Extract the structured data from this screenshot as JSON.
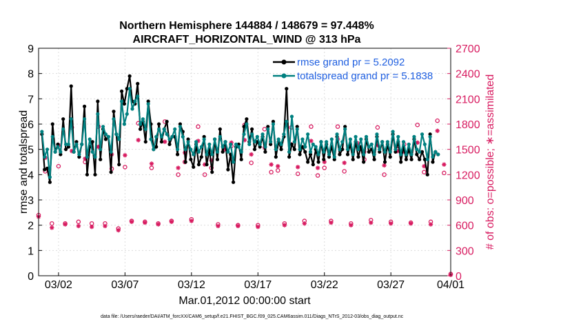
{
  "chart_data": {
    "type": "line",
    "title_line1": "Northern Hemisphere 144884 / 148679 = 97.448%",
    "title_line2": "AIRCRAFT_HORIZONTAL_WIND @ 313 hPa",
    "xlabel": "Mar.01,2012 00:00:00 start",
    "ylabel_left": "rmse and totalspread",
    "ylabel_right": "# of obs: o=possible; ∗=assimilated",
    "footer": "data file: /Users/raeder/DAI/ATM_forcXX/CAM6_setup/f.e21.FHIST_BGC.f09_025.CAM6assim.011/Diags_NTrS_2012-03/obs_diag_output.nc",
    "xlim": [
      0.5,
      31.5
    ],
    "ylim_left": [
      0,
      9
    ],
    "ylim_right": [
      0,
      2700
    ],
    "x_ticks": [
      {
        "value": 2,
        "label": "03/02"
      },
      {
        "value": 7,
        "label": "03/07"
      },
      {
        "value": 12,
        "label": "03/12"
      },
      {
        "value": 17,
        "label": "03/17"
      },
      {
        "value": 22,
        "label": "03/22"
      },
      {
        "value": 27,
        "label": "03/27"
      },
      {
        "value": 32,
        "label": "04/01"
      }
    ],
    "y_ticks_left": [
      "0",
      "1",
      "2",
      "3",
      "4",
      "5",
      "6",
      "7",
      "8",
      "9"
    ],
    "y_ticks_right": [
      "0",
      "300",
      "600",
      "900",
      "1200",
      "1500",
      "1800",
      "2100",
      "2400",
      "2700"
    ],
    "colors": {
      "rmse": "#000000",
      "spread": "#008080",
      "obs": "#d81b60",
      "legend_text": "#1f5fe0"
    },
    "series": [
      {
        "name": "rmse",
        "legend": "rmse grand pr = 5.2092",
        "values": [
          5.6,
          4.2,
          4.25,
          3.7,
          6.0,
          4.9,
          5.2,
          4.8,
          6.2,
          5.0,
          5.1,
          7.5,
          4.9,
          5.3,
          4.7,
          5.2,
          6.7,
          4.0,
          5.1,
          5.3,
          4.0,
          6.9,
          4.6,
          5.8,
          5.4,
          5.5,
          4.1,
          6.5,
          5.6,
          4.4,
          7.3,
          6.8,
          7.4,
          7.9,
          6.9,
          6.8,
          7.6,
          5.8,
          6.1,
          5.3,
          6.9,
          6.0,
          5.0,
          5.1,
          6.0,
          5.3,
          5.8,
          6.1,
          5.2,
          5.5,
          5.5,
          4.8,
          6.0,
          5.7,
          4.5,
          5.4,
          4.6,
          4.3,
          5.2,
          4.4,
          4.7,
          5.5,
          4.4,
          5.0,
          4.1,
          5.4,
          4.6,
          5.8,
          4.9,
          5.3,
          4.2,
          4.8,
          3.7,
          5.1,
          5.2,
          4.6,
          5.9,
          6.2,
          5.3,
          5.8,
          5.0,
          5.3,
          5.1,
          5.5,
          4.9,
          5.9,
          5.2,
          6.1,
          4.7,
          5.3,
          5.0,
          5.5,
          7.4,
          4.7,
          5.2,
          5.0,
          5.9,
          4.8,
          5.1,
          4.9,
          4.5,
          4.8,
          4.4,
          5.0,
          4.5,
          5.3,
          4.6,
          5.2,
          4.7,
          5.1,
          4.6,
          5.5,
          4.8,
          5.0,
          5.9,
          4.8,
          5.2,
          4.6,
          5.3,
          4.7,
          5.1,
          4.5,
          5.4,
          4.9,
          5.0,
          4.6,
          5.5,
          4.9,
          5.3,
          4.5,
          5.2,
          4.7,
          5.6,
          4.9,
          5.3,
          4.5,
          5.1,
          4.6,
          5.0,
          4.6,
          5.4,
          4.8,
          4.6,
          4.9,
          4.6,
          4.0,
          5.6,
          4.5,
          4.9,
          4.8
        ]
      },
      {
        "name": "totalspread",
        "legend": "totalspread grand pr = 5.1838",
        "values": [
          5.7,
          4.7,
          5.0,
          3.9,
          5.5,
          4.9,
          5.1,
          4.9,
          5.8,
          5.2,
          5.2,
          6.2,
          4.9,
          5.2,
          4.8,
          5.2,
          6.2,
          4.7,
          5.4,
          4.9,
          4.7,
          6.4,
          5.0,
          5.9,
          5.6,
          5.5,
          4.9,
          6.2,
          5.6,
          5.4,
          6.9,
          6.0,
          6.4,
          7.4,
          6.6,
          6.9,
          7.1,
          6.0,
          6.2,
          5.8,
          6.8,
          5.4,
          5.0,
          5.5,
          5.8,
          5.5,
          5.8,
          5.6,
          5.4,
          5.5,
          5.8,
          5.0,
          5.9,
          5.5,
          5.0,
          5.3,
          5.0,
          4.8,
          5.3,
          4.9,
          5.1,
          5.4,
          4.8,
          5.2,
          4.8,
          5.4,
          4.9,
          5.5,
          5.1,
          5.3,
          4.9,
          5.2,
          4.5,
          5.2,
          5.1,
          4.9,
          5.6,
          6.0,
          5.2,
          5.6,
          5.3,
          5.5,
          5.2,
          5.6,
          5.1,
          5.8,
          5.3,
          6.0,
          5.0,
          5.4,
          5.2,
          5.6,
          6.1,
          4.9,
          6.3,
          5.3,
          5.8,
          5.0,
          5.4,
          5.1,
          5.6,
          4.9,
          5.2,
          5.1,
          4.8,
          5.3,
          4.9,
          5.3,
          4.8,
          5.4,
          4.7,
          5.6,
          5.0,
          5.3,
          5.8,
          5.0,
          5.4,
          4.8,
          5.5,
          5.0,
          5.4,
          4.8,
          5.5,
          5.1,
          5.2,
          4.8,
          5.6,
          5.0,
          5.3,
          4.9,
          5.3,
          4.9,
          5.7,
          5.0,
          5.5,
          4.8,
          5.3,
          4.8,
          5.2,
          4.8,
          5.5,
          5.0,
          4.9,
          5.6,
          5.2,
          4.6,
          5.5,
          4.7,
          4.9,
          4.8
        ]
      },
      {
        "name": "obs_possible",
        "days": [
          0.5,
          1,
          1.5,
          2,
          2.5,
          3,
          3.5,
          4,
          4.5,
          5,
          5.5,
          6,
          6.5,
          7,
          7.5,
          8,
          8.5,
          9,
          9.5,
          10,
          10.5,
          11,
          11.5,
          12,
          12.5,
          13,
          13.5,
          14,
          14.5,
          15,
          15.5,
          16,
          16.5,
          17,
          17.5,
          18,
          18.5,
          19,
          19.5,
          20,
          20.5,
          21,
          21.5,
          22,
          22.5,
          23,
          23.5,
          24,
          24.5,
          25,
          25.5,
          26,
          26.5,
          27,
          27.5,
          28,
          28.5,
          29,
          29.5,
          30,
          30.5,
          31,
          31.5
        ],
        "values": [
          720,
          1240,
          620,
          1300,
          620,
          1760,
          640,
          1350,
          620,
          1770,
          620,
          1270,
          560,
          1290,
          650,
          1810,
          640,
          1280,
          620,
          1830,
          650,
          1200,
          1350,
          670,
          1770,
          1200,
          1280,
          610,
          1520,
          1540,
          600,
          1790,
          1340,
          600,
          1740,
          1230,
          1250,
          620,
          1760,
          1210,
          650,
          1770,
          1190,
          1280,
          650,
          1770,
          1240,
          620,
          1570,
          1380,
          660,
          1760,
          1200,
          640,
          1500,
          1560,
          630,
          1790,
          1230,
          640,
          1840,
          1220,
          20
        ]
      },
      {
        "name": "obs_assimilated",
        "days": [
          0.5,
          1,
          1.5,
          2,
          2.5,
          3,
          3.5,
          4,
          4.5,
          5,
          5.5,
          6,
          6.5,
          7,
          7.5,
          8,
          8.5,
          9,
          9.5,
          10,
          10.5,
          11,
          11.5,
          12,
          12.5,
          13,
          13.5,
          14,
          14.5,
          15,
          15.5,
          16,
          16.5,
          17,
          17.5,
          18,
          18.5,
          19,
          19.5,
          20,
          20.5,
          21,
          21.5,
          22,
          22.5,
          23,
          23.5,
          24,
          24.5,
          25,
          25.5,
          26,
          26.5,
          27,
          27.5,
          28,
          28.5,
          29,
          29.5,
          30,
          30.5,
          31,
          31.5
        ],
        "values": [
          700,
          1400,
          570,
          1550,
          610,
          1480,
          590,
          1390,
          580,
          1530,
          590,
          1440,
          540,
          1430,
          640,
          1610,
          630,
          1330,
          610,
          1590,
          640,
          1280,
          1460,
          650,
          1600,
          1320,
          1370,
          590,
          1500,
          1580,
          590,
          1610,
          1440,
          580,
          1520,
          1320,
          1300,
          600,
          1560,
          1290,
          620,
          1600,
          1280,
          1350,
          630,
          1620,
          1340,
          600,
          1560,
          1470,
          630,
          1550,
          1310,
          620,
          1480,
          1470,
          620,
          1580,
          1300,
          610,
          1720,
          1320,
          10
        ]
      }
    ]
  }
}
